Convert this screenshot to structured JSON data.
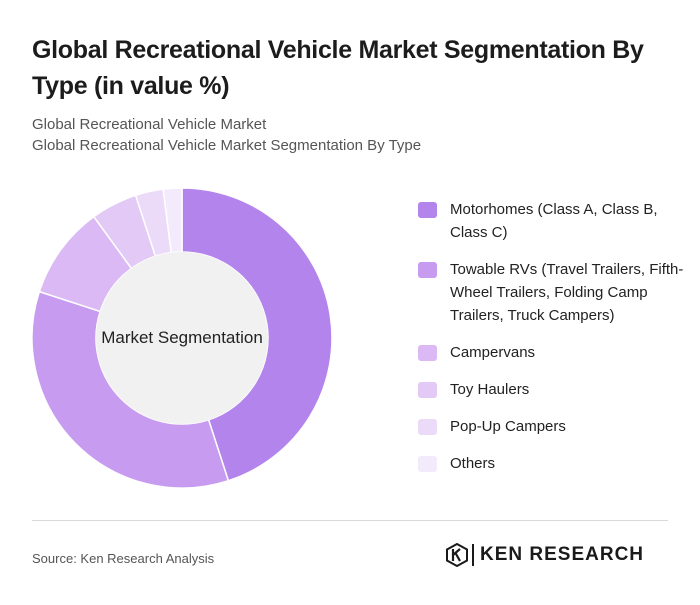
{
  "header": {
    "title": "Global Recreational Vehicle Market Segmentation By Type (in value %)",
    "subtitle_line1": "Global Recreational Vehicle Market",
    "subtitle_line2": "Global Recreational Vehicle Market Segmentation By Type"
  },
  "chart_data": {
    "type": "pie",
    "donut": true,
    "center_label": "Market Segmentation",
    "categories": [
      "Motorhomes (Class A, Class B, Class C)",
      "Towable RVs (Travel Trailers, Fifth-Wheel Trailers, Folding Camp Trailers, Truck Campers)",
      "Campervans",
      "Toy Haulers",
      "Pop-Up Campers",
      "Others"
    ],
    "values": [
      45,
      35,
      10,
      5,
      3,
      2
    ],
    "colors": [
      "#b484ed",
      "#c79cf0",
      "#dab9f4",
      "#e3c9f6",
      "#ecdaf9",
      "#f3eafb"
    ],
    "legend_position": "right"
  },
  "footer": {
    "source": "Source: Ken Research Analysis",
    "logo_text": "KEN RESEARCH"
  }
}
